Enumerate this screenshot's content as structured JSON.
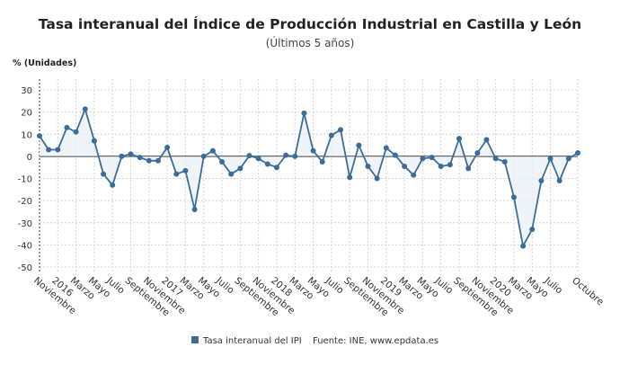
{
  "chart_data": {
    "type": "line",
    "title": "Tasa interanual del Índice de Producción Industrial en Castilla y León",
    "subtitle": "(Últimos 5 años)",
    "ylabel": "% (Unidades)",
    "ylim": [
      -50,
      30
    ],
    "yticks": [
      30,
      20,
      10,
      0,
      -10,
      -20,
      -30,
      -40,
      -50
    ],
    "grid": true,
    "x_start": "2015-11",
    "xtick_labels": [
      "Noviembre",
      "2016",
      "Marzo",
      "Mayo",
      "Julio",
      "Septiembre",
      "Noviembre",
      "2017",
      "Marzo",
      "Mayo",
      "Julio",
      "Septiembre",
      "Noviembre",
      "2018",
      "Marzo",
      "Mayo",
      "Julio",
      "Septiembre",
      "Noviembre",
      "2019",
      "Marzo",
      "Mayo",
      "Julio",
      "Septiembre",
      "Noviembre",
      "2020",
      "Marzo",
      "Mayo",
      "Julio",
      "Octubre"
    ],
    "xtick_index": [
      0,
      2,
      4,
      6,
      8,
      10,
      12,
      14,
      16,
      18,
      20,
      22,
      24,
      26,
      28,
      30,
      32,
      34,
      36,
      38,
      40,
      42,
      44,
      46,
      48,
      50,
      52,
      54,
      56,
      59
    ],
    "series": [
      {
        "name": "Tasa interanual del IPI",
        "color": "#3a6d9a",
        "values": [
          9.2,
          3,
          3,
          13,
          11,
          21.3,
          7,
          -8,
          -13,
          0,
          1,
          -0.5,
          -2,
          -2,
          4,
          -8,
          -6.5,
          -24,
          0,
          2.5,
          -2.5,
          -8,
          -5.5,
          0.3,
          -1,
          -3.5,
          -5,
          0.5,
          0,
          19.5,
          2.5,
          -2.5,
          9.5,
          12,
          -9.5,
          5,
          -4.5,
          -10,
          3.8,
          0.5,
          -4.5,
          -8.5,
          -1,
          -0.5,
          -4.5,
          -3.8,
          8,
          -5.5,
          1.5,
          7.5,
          -1,
          -2.5,
          -18.5,
          -40.5,
          -33,
          -11,
          -1,
          -11,
          -1,
          1.5
        ]
      }
    ],
    "legend": "bottom",
    "source": "Fuente: INE, www.epdata.es"
  }
}
